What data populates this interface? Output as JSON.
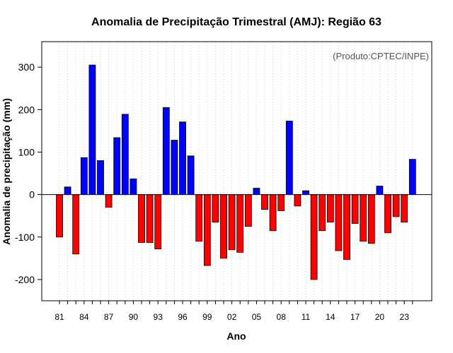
{
  "chart_data": {
    "type": "bar",
    "title": "Anomalia de Precipitação Trimestral (AMJ): Região 63",
    "xlabel": "Ano",
    "ylabel": "Anomalia de precipitação (mm)",
    "credit": "(Produto:CPTEC/INPE)",
    "ylim": [
      -250,
      360
    ],
    "yticks": [
      -200,
      -100,
      0,
      100,
      200,
      300
    ],
    "xtick_labels": [
      "81",
      "84",
      "87",
      "90",
      "93",
      "96",
      "99",
      "02",
      "05",
      "08",
      "11",
      "14",
      "17",
      "20",
      "23"
    ],
    "xtick_start_year": 1981,
    "xtick_step": 3,
    "grid": true,
    "years": [
      1981,
      1982,
      1983,
      1984,
      1985,
      1986,
      1987,
      1988,
      1989,
      1990,
      1991,
      1992,
      1993,
      1994,
      1995,
      1996,
      1997,
      1998,
      1999,
      2000,
      2001,
      2002,
      2003,
      2004,
      2005,
      2006,
      2007,
      2008,
      2009,
      2010,
      2011,
      2012,
      2013,
      2014,
      2015,
      2016,
      2017,
      2018,
      2019,
      2020,
      2021,
      2022,
      2023,
      2024
    ],
    "values": [
      -100,
      18,
      -140,
      87,
      305,
      80,
      -30,
      134,
      189,
      37,
      -113,
      -113,
      -128,
      205,
      128,
      171,
      91,
      -110,
      -167,
      -65,
      -150,
      -130,
      -136,
      -75,
      15,
      -35,
      -85,
      -38,
      173,
      -27,
      9,
      -200,
      -85,
      -65,
      -132,
      -153,
      -68,
      -110,
      -115,
      20,
      -90,
      -52,
      -65,
      83
    ],
    "colors": {
      "positive": "#0000ff",
      "negative": "#ff0000",
      "grid": "#cccccc",
      "frame": "#000000"
    }
  }
}
